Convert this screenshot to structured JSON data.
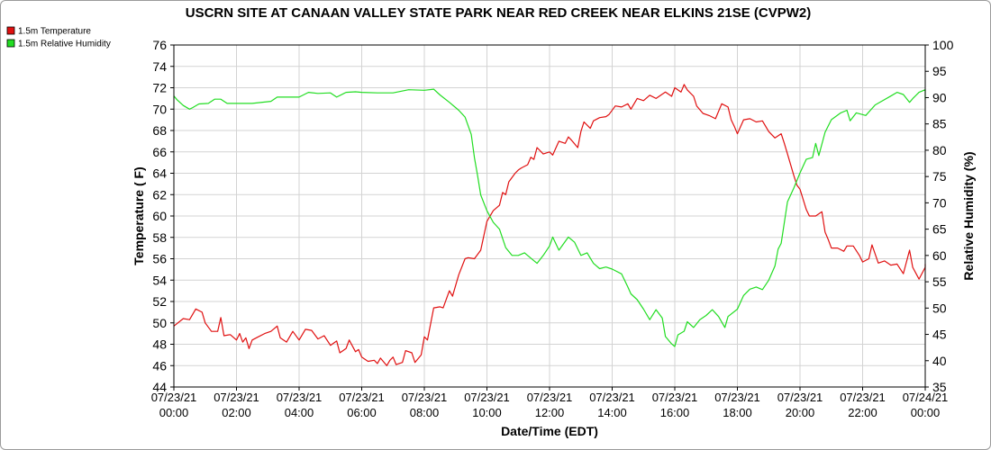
{
  "chart_data": {
    "type": "line",
    "title": "USCRN SITE AT CANAAN VALLEY STATE PARK NEAR RED CREEK NEAR ELKINS 21SE (CVPW2)",
    "xlabel": "Date/Time (EDT)",
    "ylabel_left": "Temperature ( F)",
    "ylabel_right": "Relative Humidity (%)",
    "xlim": [
      0,
      24
    ],
    "ylim_left": [
      44,
      76
    ],
    "ylim_right": [
      35,
      100
    ],
    "grid": true,
    "legend_position": "top-left",
    "x_ticks": [
      {
        "value": 0,
        "date": "07/23/21",
        "time": "00:00"
      },
      {
        "value": 2,
        "date": "07/23/21",
        "time": "02:00"
      },
      {
        "value": 4,
        "date": "07/23/21",
        "time": "04:00"
      },
      {
        "value": 6,
        "date": "07/23/21",
        "time": "06:00"
      },
      {
        "value": 8,
        "date": "07/23/21",
        "time": "08:00"
      },
      {
        "value": 10,
        "date": "07/23/21",
        "time": "10:00"
      },
      {
        "value": 12,
        "date": "07/23/21",
        "time": "12:00"
      },
      {
        "value": 14,
        "date": "07/23/21",
        "time": "14:00"
      },
      {
        "value": 16,
        "date": "07/23/21",
        "time": "16:00"
      },
      {
        "value": 18,
        "date": "07/23/21",
        "time": "18:00"
      },
      {
        "value": 20,
        "date": "07/23/21",
        "time": "20:00"
      },
      {
        "value": 22,
        "date": "07/23/21",
        "time": "22:00"
      },
      {
        "value": 24,
        "date": "07/24/21",
        "time": "00:00"
      }
    ],
    "y_ticks_left": [
      "44",
      "46",
      "48",
      "50",
      "52",
      "54",
      "56",
      "58",
      "60",
      "62",
      "64",
      "66",
      "68",
      "70",
      "72",
      "74",
      "76"
    ],
    "y_ticks_right": [
      "35",
      "40",
      "45",
      "50",
      "55",
      "60",
      "65",
      "70",
      "75",
      "80",
      "85",
      "90",
      "95",
      "100"
    ],
    "series": [
      {
        "name": "1.5m Temperature",
        "axis": "left",
        "color": "#e01010",
        "points": [
          [
            0,
            49.7
          ],
          [
            0.3,
            50.4
          ],
          [
            0.5,
            50.3
          ],
          [
            0.7,
            51.3
          ],
          [
            0.9,
            51.0
          ],
          [
            1.0,
            50.0
          ],
          [
            1.2,
            49.2
          ],
          [
            1.4,
            49.2
          ],
          [
            1.5,
            50.5
          ],
          [
            1.6,
            48.8
          ],
          [
            1.8,
            48.9
          ],
          [
            2.0,
            48.4
          ],
          [
            2.1,
            49.0
          ],
          [
            2.2,
            48.2
          ],
          [
            2.3,
            48.6
          ],
          [
            2.4,
            47.6
          ],
          [
            2.5,
            48.4
          ],
          [
            2.7,
            48.7
          ],
          [
            2.9,
            49.0
          ],
          [
            3.1,
            49.2
          ],
          [
            3.3,
            49.7
          ],
          [
            3.4,
            48.6
          ],
          [
            3.6,
            48.2
          ],
          [
            3.8,
            49.2
          ],
          [
            4.0,
            48.4
          ],
          [
            4.2,
            49.4
          ],
          [
            4.4,
            49.3
          ],
          [
            4.6,
            48.5
          ],
          [
            4.8,
            48.8
          ],
          [
            5.0,
            47.9
          ],
          [
            5.2,
            48.3
          ],
          [
            5.3,
            47.2
          ],
          [
            5.5,
            47.6
          ],
          [
            5.6,
            48.4
          ],
          [
            5.8,
            47.3
          ],
          [
            5.9,
            47.5
          ],
          [
            6.0,
            46.8
          ],
          [
            6.2,
            46.4
          ],
          [
            6.4,
            46.5
          ],
          [
            6.5,
            46.2
          ],
          [
            6.6,
            46.7
          ],
          [
            6.8,
            46.0
          ],
          [
            6.9,
            46.5
          ],
          [
            7.0,
            46.8
          ],
          [
            7.1,
            46.1
          ],
          [
            7.3,
            46.3
          ],
          [
            7.4,
            47.4
          ],
          [
            7.6,
            47.2
          ],
          [
            7.7,
            46.3
          ],
          [
            7.9,
            47.0
          ],
          [
            8.0,
            48.7
          ],
          [
            8.1,
            48.4
          ],
          [
            8.3,
            51.4
          ],
          [
            8.5,
            51.5
          ],
          [
            8.6,
            51.4
          ],
          [
            8.8,
            53.0
          ],
          [
            8.9,
            52.5
          ],
          [
            9.1,
            54.5
          ],
          [
            9.3,
            56.0
          ],
          [
            9.4,
            56.1
          ],
          [
            9.6,
            56.0
          ],
          [
            9.8,
            56.8
          ],
          [
            10.0,
            59.5
          ],
          [
            10.2,
            60.5
          ],
          [
            10.4,
            61.0
          ],
          [
            10.5,
            62.2
          ],
          [
            10.6,
            62.0
          ],
          [
            10.7,
            63.2
          ],
          [
            10.9,
            64.0
          ],
          [
            11.0,
            64.3
          ],
          [
            11.1,
            64.5
          ],
          [
            11.3,
            64.8
          ],
          [
            11.4,
            65.5
          ],
          [
            11.5,
            65.3
          ],
          [
            11.6,
            66.4
          ],
          [
            11.8,
            65.8
          ],
          [
            12.0,
            66.0
          ],
          [
            12.1,
            65.7
          ],
          [
            12.3,
            67.0
          ],
          [
            12.5,
            66.8
          ],
          [
            12.6,
            67.4
          ],
          [
            12.7,
            67.1
          ],
          [
            12.9,
            66.4
          ],
          [
            13.0,
            67.9
          ],
          [
            13.1,
            68.8
          ],
          [
            13.3,
            68.2
          ],
          [
            13.4,
            68.9
          ],
          [
            13.6,
            69.2
          ],
          [
            13.8,
            69.3
          ],
          [
            13.9,
            69.5
          ],
          [
            14.1,
            70.3
          ],
          [
            14.3,
            70.2
          ],
          [
            14.5,
            70.5
          ],
          [
            14.6,
            70.0
          ],
          [
            14.8,
            71.0
          ],
          [
            15.0,
            70.8
          ],
          [
            15.2,
            71.3
          ],
          [
            15.4,
            71.0
          ],
          [
            15.6,
            71.4
          ],
          [
            15.7,
            71.6
          ],
          [
            15.9,
            71.2
          ],
          [
            16.0,
            72.0
          ],
          [
            16.2,
            71.6
          ],
          [
            16.3,
            72.3
          ],
          [
            16.4,
            71.8
          ],
          [
            16.6,
            71.2
          ],
          [
            16.7,
            70.3
          ],
          [
            16.9,
            69.6
          ],
          [
            17.1,
            69.4
          ],
          [
            17.3,
            69.1
          ],
          [
            17.5,
            70.5
          ],
          [
            17.7,
            70.2
          ],
          [
            17.8,
            69.0
          ],
          [
            17.9,
            68.4
          ],
          [
            18.0,
            67.7
          ],
          [
            18.2,
            69.0
          ],
          [
            18.4,
            69.1
          ],
          [
            18.6,
            68.8
          ],
          [
            18.8,
            68.9
          ],
          [
            19.0,
            67.9
          ],
          [
            19.2,
            67.3
          ],
          [
            19.4,
            67.7
          ],
          [
            19.5,
            66.8
          ],
          [
            19.6,
            65.8
          ],
          [
            19.8,
            63.8
          ],
          [
            19.9,
            62.9
          ],
          [
            20.0,
            62.5
          ],
          [
            20.2,
            60.6
          ],
          [
            20.3,
            60.0
          ],
          [
            20.5,
            60.0
          ],
          [
            20.7,
            60.4
          ],
          [
            20.8,
            58.5
          ],
          [
            20.9,
            57.8
          ],
          [
            21.0,
            57.0
          ],
          [
            21.2,
            57.0
          ],
          [
            21.4,
            56.7
          ],
          [
            21.5,
            57.2
          ],
          [
            21.7,
            57.2
          ],
          [
            21.9,
            56.3
          ],
          [
            22.0,
            55.7
          ],
          [
            22.2,
            56.0
          ],
          [
            22.3,
            57.3
          ],
          [
            22.5,
            55.6
          ],
          [
            22.7,
            55.8
          ],
          [
            22.9,
            55.4
          ],
          [
            23.1,
            55.5
          ],
          [
            23.3,
            54.6
          ],
          [
            23.5,
            56.8
          ],
          [
            23.6,
            55.2
          ],
          [
            23.8,
            54.1
          ],
          [
            24.0,
            55.2
          ],
          [
            24.0,
            55.5
          ]
        ]
      },
      {
        "name": "1.5m Relative Humidity",
        "axis": "right",
        "color": "#22dd22",
        "points": [
          [
            0,
            90.3
          ],
          [
            0.1,
            89.6
          ],
          [
            0.3,
            88.5
          ],
          [
            0.5,
            87.8
          ],
          [
            0.6,
            88.1
          ],
          [
            0.8,
            88.8
          ],
          [
            1.1,
            88.9
          ],
          [
            1.3,
            89.7
          ],
          [
            1.5,
            89.7
          ],
          [
            1.7,
            88.9
          ],
          [
            1.9,
            88.9
          ],
          [
            2.1,
            88.9
          ],
          [
            2.5,
            88.9
          ],
          [
            3.1,
            89.3
          ],
          [
            3.3,
            90.1
          ],
          [
            4.0,
            90.1
          ],
          [
            4.3,
            91.0
          ],
          [
            4.6,
            90.8
          ],
          [
            5.0,
            90.9
          ],
          [
            5.2,
            90.1
          ],
          [
            5.5,
            91.0
          ],
          [
            5.8,
            91.1
          ],
          [
            6.0,
            91.0
          ],
          [
            6.5,
            90.9
          ],
          [
            7.0,
            90.9
          ],
          [
            7.5,
            91.5
          ],
          [
            8.0,
            91.4
          ],
          [
            8.3,
            91.6
          ],
          [
            8.5,
            90.5
          ],
          [
            8.8,
            89.1
          ],
          [
            9.1,
            87.6
          ],
          [
            9.3,
            86.3
          ],
          [
            9.5,
            83.0
          ],
          [
            9.6,
            78.6
          ],
          [
            9.7,
            75.2
          ],
          [
            9.8,
            71.5
          ],
          [
            10.0,
            68.5
          ],
          [
            10.2,
            66.3
          ],
          [
            10.4,
            65.0
          ],
          [
            10.6,
            61.5
          ],
          [
            10.8,
            60.0
          ],
          [
            11.0,
            60.0
          ],
          [
            11.2,
            60.5
          ],
          [
            11.4,
            59.5
          ],
          [
            11.6,
            58.5
          ],
          [
            11.8,
            60.0
          ],
          [
            12.0,
            61.8
          ],
          [
            12.1,
            63.5
          ],
          [
            12.3,
            61.0
          ],
          [
            12.6,
            63.5
          ],
          [
            12.8,
            62.5
          ],
          [
            13.0,
            60.0
          ],
          [
            13.2,
            60.5
          ],
          [
            13.4,
            58.5
          ],
          [
            13.6,
            57.5
          ],
          [
            13.8,
            57.8
          ],
          [
            14.0,
            57.4
          ],
          [
            14.3,
            56.5
          ],
          [
            14.5,
            54.0
          ],
          [
            14.6,
            52.7
          ],
          [
            14.8,
            51.6
          ],
          [
            15.0,
            49.8
          ],
          [
            15.2,
            47.8
          ],
          [
            15.4,
            49.7
          ],
          [
            15.6,
            48.1
          ],
          [
            15.7,
            44.6
          ],
          [
            15.9,
            43.2
          ],
          [
            16.0,
            42.7
          ],
          [
            16.1,
            44.9
          ],
          [
            16.3,
            45.6
          ],
          [
            16.4,
            47.4
          ],
          [
            16.6,
            46.3
          ],
          [
            16.8,
            47.8
          ],
          [
            17.0,
            48.6
          ],
          [
            17.2,
            49.7
          ],
          [
            17.4,
            48.4
          ],
          [
            17.6,
            46.3
          ],
          [
            17.7,
            48.4
          ],
          [
            18.0,
            49.8
          ],
          [
            18.2,
            52.4
          ],
          [
            18.4,
            53.6
          ],
          [
            18.6,
            54.0
          ],
          [
            18.8,
            53.5
          ],
          [
            19.0,
            55.3
          ],
          [
            19.2,
            58.0
          ],
          [
            19.3,
            61.2
          ],
          [
            19.4,
            62.3
          ],
          [
            19.6,
            70.2
          ],
          [
            19.8,
            72.8
          ],
          [
            20.0,
            75.7
          ],
          [
            20.2,
            78.3
          ],
          [
            20.4,
            78.6
          ],
          [
            20.5,
            81.3
          ],
          [
            20.6,
            79.0
          ],
          [
            20.8,
            83.4
          ],
          [
            21.0,
            85.8
          ],
          [
            21.3,
            87.1
          ],
          [
            21.5,
            87.6
          ],
          [
            21.6,
            85.6
          ],
          [
            21.8,
            87.1
          ],
          [
            22.1,
            86.6
          ],
          [
            22.4,
            88.6
          ],
          [
            22.6,
            89.3
          ],
          [
            22.9,
            90.3
          ],
          [
            23.1,
            91.0
          ],
          [
            23.3,
            90.6
          ],
          [
            23.5,
            89.1
          ],
          [
            23.6,
            89.8
          ],
          [
            23.8,
            91.0
          ],
          [
            24.0,
            91.5
          ],
          [
            24.0,
            89.6
          ]
        ]
      }
    ]
  }
}
